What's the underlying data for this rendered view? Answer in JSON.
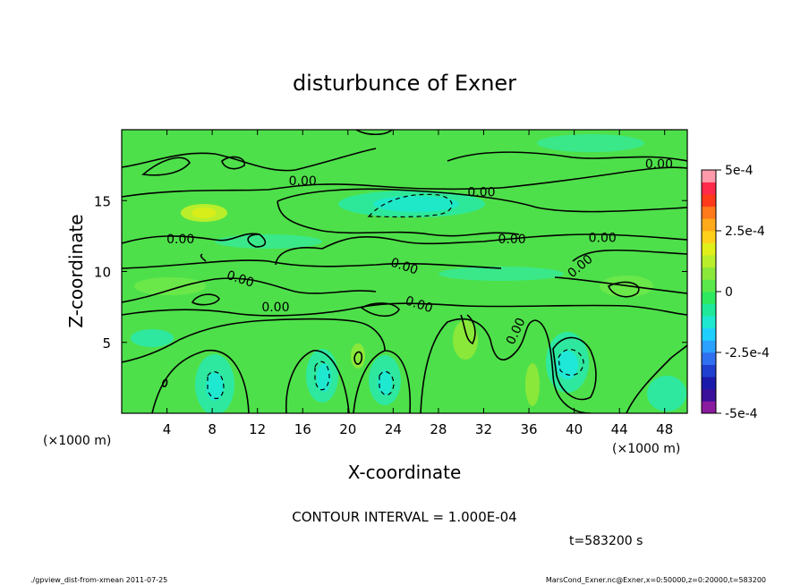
{
  "chart_data": {
    "type": "heatmap",
    "title": "disturbunce of Exner",
    "xlabel": "X-coordinate",
    "ylabel": "Z-coordinate",
    "x_unit": "(×1000 m)",
    "y_unit": "(×1000 m)",
    "xlim": [
      0,
      50
    ],
    "ylim": [
      0,
      20
    ],
    "x_ticks": [
      4,
      8,
      12,
      16,
      20,
      24,
      28,
      32,
      36,
      40,
      44,
      48
    ],
    "y_ticks": [
      5,
      10,
      15
    ],
    "colorbar": {
      "min": -0.0005,
      "max": 0.0005,
      "tick_labels": [
        "5e-4",
        "2.5e-4",
        "0",
        "-2.5e-4",
        "-5e-4"
      ],
      "tick_values": [
        0.0005,
        0.00025,
        0,
        -0.00025,
        -0.0005
      ],
      "levels": 20,
      "colors": [
        "#8a1a9e",
        "#3a0f9a",
        "#1a1aaa",
        "#1f3fd0",
        "#2f70f0",
        "#2aa0ff",
        "#1fd0ff",
        "#1fe8d0",
        "#1fe89a",
        "#2ee860",
        "#5ae84a",
        "#8ae83a",
        "#b8ee2a",
        "#e0ee1a",
        "#ffd01a",
        "#ffaa1a",
        "#ff7a1a",
        "#ff3a1a",
        "#ff2a4a",
        "#ff9aaa"
      ]
    },
    "contour_interval": "1.000E-04",
    "contour_labels": [
      {
        "text": "0.00",
        "x": 16.0,
        "y": 16.4
      },
      {
        "text": "0.00",
        "x": 31.8,
        "y": 15.6
      },
      {
        "text": "0.00",
        "x": 47.5,
        "y": 17.6
      },
      {
        "text": "0.00",
        "x": 5.2,
        "y": 12.3
      },
      {
        "text": "0.00",
        "x": 34.5,
        "y": 12.3
      },
      {
        "text": "0.00",
        "x": 42.5,
        "y": 12.4
      },
      {
        "text": "0.00",
        "x": 10.5,
        "y": 9.5
      },
      {
        "text": "0.00",
        "x": 25.0,
        "y": 10.4
      },
      {
        "text": "0.00",
        "x": 40.5,
        "y": 10.4
      },
      {
        "text": "0.00",
        "x": 13.6,
        "y": 7.5
      },
      {
        "text": "0.00",
        "x": 26.3,
        "y": 7.7
      },
      {
        "text": "0.00",
        "x": 34.8,
        "y": 5.8
      }
    ]
  },
  "caption": {
    "contour_interval_text": "CONTOUR INTERVAL = 1.000E-04",
    "time_text": "t=583200  s"
  },
  "footer": {
    "left": "./gpview_dist-from-xmean  2011-07-25",
    "right": "MarsCond_Exner.nc@Exner,x=0:50000,z=0:20000,t=583200"
  }
}
